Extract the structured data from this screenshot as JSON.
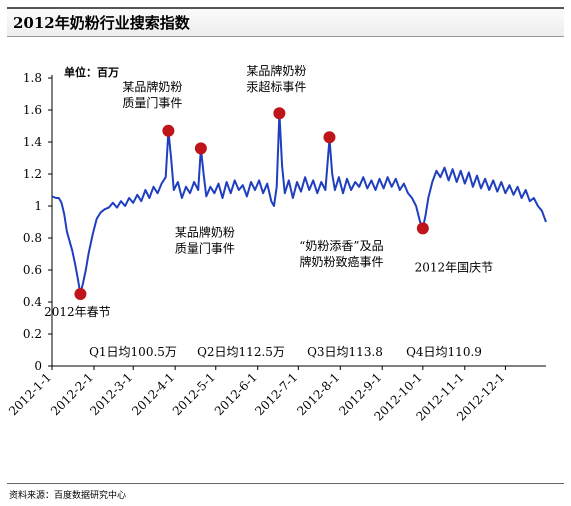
{
  "header": {
    "title": "2012年奶粉行业搜索指数"
  },
  "chart_data": {
    "type": "line",
    "unit_label": "单位：百万",
    "ylim": [
      0,
      1.8
    ],
    "yticks": [
      0,
      0.2,
      0.4,
      0.6,
      0.8,
      1,
      1.2,
      1.4,
      1.6,
      1.8
    ],
    "ytick_labels": [
      "0",
      "0.2",
      "0.4",
      "0.6",
      "0.8",
      "1",
      "1.2",
      "1.4",
      "1.6",
      "1.8"
    ],
    "xlim": [
      "2012-01-01",
      "2012-12-31"
    ],
    "xticks": [
      "2012-01-01",
      "2012-02-01",
      "2012-03-01",
      "2012-04-01",
      "2012-05-01",
      "2012-06-01",
      "2012-07-01",
      "2012-08-01",
      "2012-09-01",
      "2012-10-01",
      "2012-11-01",
      "2012-12-01"
    ],
    "xtick_labels": [
      "2012-1-1",
      "2012-2-1",
      "2012-3-1",
      "2012-4-1",
      "2012-5-1",
      "2012-6-1",
      "2012-7-1",
      "2012-8-1",
      "2012-9-1",
      "2012-10-1",
      "2012-11-1",
      "2012-12-1"
    ],
    "grid": false,
    "series": [
      {
        "color": "#1f3fbf",
        "points": [
          [
            "2012-01-01",
            1.06
          ],
          [
            "2012-01-04",
            1.05
          ],
          [
            "2012-01-06",
            1.05
          ],
          [
            "2012-01-08",
            1.02
          ],
          [
            "2012-01-10",
            0.95
          ],
          [
            "2012-01-12",
            0.84
          ],
          [
            "2012-01-14",
            0.78
          ],
          [
            "2012-01-16",
            0.72
          ],
          [
            "2012-01-18",
            0.64
          ],
          [
            "2012-01-20",
            0.55
          ],
          [
            "2012-01-22",
            0.45
          ],
          [
            "2012-01-24",
            0.52
          ],
          [
            "2012-01-26",
            0.6
          ],
          [
            "2012-01-28",
            0.7
          ],
          [
            "2012-01-31",
            0.82
          ],
          [
            "2012-02-03",
            0.92
          ],
          [
            "2012-02-06",
            0.96
          ],
          [
            "2012-02-09",
            0.98
          ],
          [
            "2012-02-12",
            0.99
          ],
          [
            "2012-02-15",
            1.02
          ],
          [
            "2012-02-18",
            0.99
          ],
          [
            "2012-02-21",
            1.03
          ],
          [
            "2012-02-24",
            1.0
          ],
          [
            "2012-02-27",
            1.05
          ],
          [
            "2012-03-01",
            1.02
          ],
          [
            "2012-03-04",
            1.07
          ],
          [
            "2012-03-07",
            1.03
          ],
          [
            "2012-03-10",
            1.1
          ],
          [
            "2012-03-13",
            1.05
          ],
          [
            "2012-03-16",
            1.12
          ],
          [
            "2012-03-19",
            1.08
          ],
          [
            "2012-03-22",
            1.14
          ],
          [
            "2012-03-25",
            1.18
          ],
          [
            "2012-03-27",
            1.47
          ],
          [
            "2012-03-29",
            1.3
          ],
          [
            "2012-03-31",
            1.1
          ],
          [
            "2012-04-03",
            1.15
          ],
          [
            "2012-04-06",
            1.05
          ],
          [
            "2012-04-09",
            1.12
          ],
          [
            "2012-04-12",
            1.08
          ],
          [
            "2012-04-15",
            1.15
          ],
          [
            "2012-04-18",
            1.1
          ],
          [
            "2012-04-20",
            1.36
          ],
          [
            "2012-04-22",
            1.2
          ],
          [
            "2012-04-24",
            1.06
          ],
          [
            "2012-04-27",
            1.12
          ],
          [
            "2012-04-30",
            1.08
          ],
          [
            "2012-05-03",
            1.14
          ],
          [
            "2012-05-06",
            1.05
          ],
          [
            "2012-05-09",
            1.15
          ],
          [
            "2012-05-12",
            1.08
          ],
          [
            "2012-05-15",
            1.16
          ],
          [
            "2012-05-18",
            1.1
          ],
          [
            "2012-05-21",
            1.13
          ],
          [
            "2012-05-24",
            1.06
          ],
          [
            "2012-05-27",
            1.15
          ],
          [
            "2012-05-30",
            1.1
          ],
          [
            "2012-06-02",
            1.16
          ],
          [
            "2012-06-05",
            1.08
          ],
          [
            "2012-06-08",
            1.14
          ],
          [
            "2012-06-11",
            1.03
          ],
          [
            "2012-06-13",
            1.0
          ],
          [
            "2012-06-15",
            1.12
          ],
          [
            "2012-06-17",
            1.58
          ],
          [
            "2012-06-19",
            1.25
          ],
          [
            "2012-06-21",
            1.08
          ],
          [
            "2012-06-24",
            1.16
          ],
          [
            "2012-06-27",
            1.05
          ],
          [
            "2012-06-30",
            1.15
          ],
          [
            "2012-07-03",
            1.09
          ],
          [
            "2012-07-06",
            1.18
          ],
          [
            "2012-07-09",
            1.1
          ],
          [
            "2012-07-12",
            1.16
          ],
          [
            "2012-07-15",
            1.08
          ],
          [
            "2012-07-18",
            1.15
          ],
          [
            "2012-07-21",
            1.1
          ],
          [
            "2012-07-24",
            1.42
          ],
          [
            "2012-07-26",
            1.2
          ],
          [
            "2012-07-28",
            1.1
          ],
          [
            "2012-07-31",
            1.18
          ],
          [
            "2012-08-03",
            1.08
          ],
          [
            "2012-08-06",
            1.17
          ],
          [
            "2012-08-09",
            1.1
          ],
          [
            "2012-08-12",
            1.15
          ],
          [
            "2012-08-15",
            1.12
          ],
          [
            "2012-08-18",
            1.18
          ],
          [
            "2012-08-21",
            1.11
          ],
          [
            "2012-08-24",
            1.16
          ],
          [
            "2012-08-27",
            1.1
          ],
          [
            "2012-08-30",
            1.17
          ],
          [
            "2012-09-02",
            1.11
          ],
          [
            "2012-09-05",
            1.18
          ],
          [
            "2012-09-08",
            1.12
          ],
          [
            "2012-09-11",
            1.17
          ],
          [
            "2012-09-14",
            1.1
          ],
          [
            "2012-09-17",
            1.14
          ],
          [
            "2012-09-20",
            1.08
          ],
          [
            "2012-09-23",
            1.05
          ],
          [
            "2012-09-26",
            1.0
          ],
          [
            "2012-09-29",
            0.9
          ],
          [
            "2012-10-01",
            0.86
          ],
          [
            "2012-10-03",
            0.94
          ],
          [
            "2012-10-05",
            1.05
          ],
          [
            "2012-10-08",
            1.15
          ],
          [
            "2012-10-11",
            1.22
          ],
          [
            "2012-10-14",
            1.18
          ],
          [
            "2012-10-17",
            1.24
          ],
          [
            "2012-10-20",
            1.16
          ],
          [
            "2012-10-23",
            1.23
          ],
          [
            "2012-10-26",
            1.15
          ],
          [
            "2012-10-29",
            1.22
          ],
          [
            "2012-11-01",
            1.14
          ],
          [
            "2012-11-04",
            1.21
          ],
          [
            "2012-11-07",
            1.12
          ],
          [
            "2012-11-10",
            1.19
          ],
          [
            "2012-11-13",
            1.11
          ],
          [
            "2012-11-16",
            1.17
          ],
          [
            "2012-11-19",
            1.1
          ],
          [
            "2012-11-22",
            1.16
          ],
          [
            "2012-11-25",
            1.09
          ],
          [
            "2012-11-28",
            1.15
          ],
          [
            "2012-12-01",
            1.08
          ],
          [
            "2012-12-04",
            1.13
          ],
          [
            "2012-12-07",
            1.07
          ],
          [
            "2012-12-10",
            1.12
          ],
          [
            "2012-12-13",
            1.05
          ],
          [
            "2012-12-16",
            1.1
          ],
          [
            "2012-12-19",
            1.03
          ],
          [
            "2012-12-22",
            1.05
          ],
          [
            "2012-12-25",
            1.0
          ],
          [
            "2012-12-28",
            0.97
          ],
          [
            "2012-12-31",
            0.9
          ]
        ]
      }
    ],
    "events": [
      {
        "date": "2012-01-22",
        "y": 0.45,
        "color": "#c0141b",
        "label": [
          "2012年春节"
        ]
      },
      {
        "date": "2012-03-27",
        "y": 1.47,
        "color": "#c0141b",
        "label": [
          "某品牌奶粉",
          "质量门事件"
        ]
      },
      {
        "date": "2012-04-20",
        "y": 1.36,
        "color": "#c0141b",
        "label": [
          "某品牌奶粉",
          "质量门事件"
        ]
      },
      {
        "date": "2012-06-17",
        "y": 1.58,
        "color": "#c0141b",
        "label": [
          "某品牌奶粉",
          "汞超标事件"
        ]
      },
      {
        "date": "2012-07-24",
        "y": 1.43,
        "color": "#c0141b",
        "label": [
          "“奶粉添香”及品",
          "牌奶粉致癌事件"
        ]
      },
      {
        "date": "2012-10-01",
        "y": 0.86,
        "color": "#c0141b",
        "label": [
          "2012年国庆节"
        ]
      }
    ],
    "quarter_averages": [
      "Q1日均100.5万",
      "Q2日均112.5万",
      "Q3日均113.8",
      "Q4日均110.9"
    ]
  },
  "footer": {
    "source": "资料来源：百度数据研究中心"
  }
}
